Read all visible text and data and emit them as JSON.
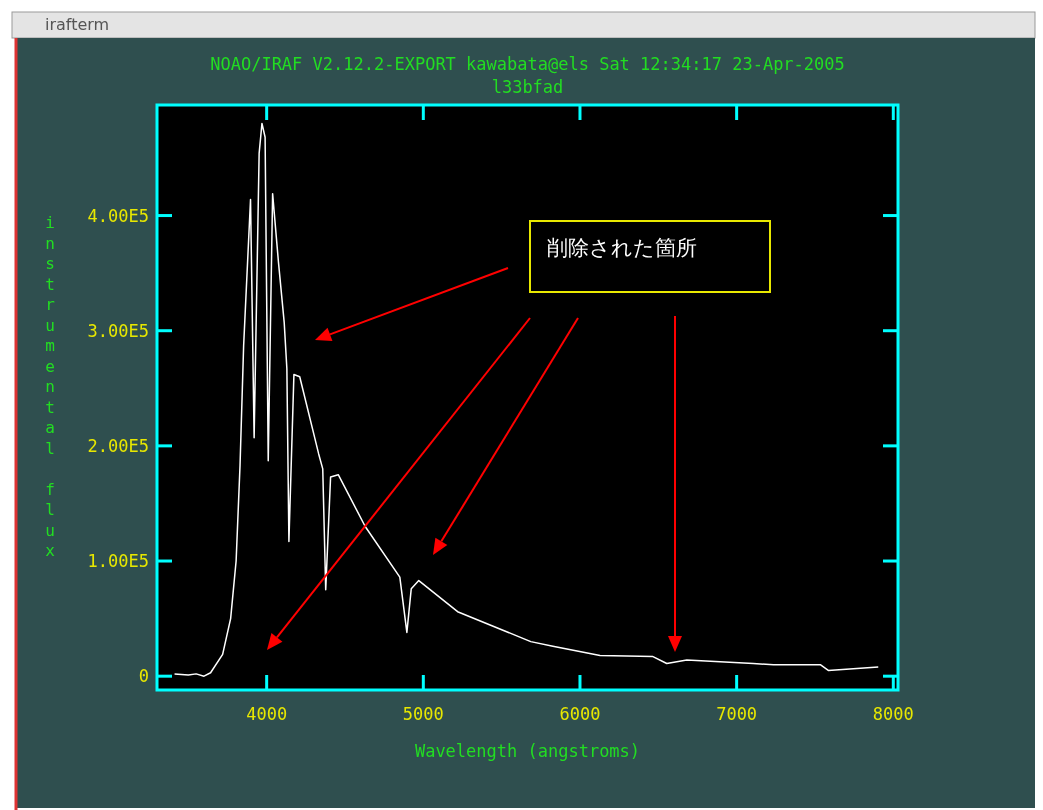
{
  "chart_data": {
    "type": "line",
    "title": "NOAO/IRAF V2.12.2-EXPORT kawabata@els Sat 12:34:17 23-Apr-2005",
    "subtitle": "l33bfad",
    "xlabel": "Wavelength (angstroms)",
    "ylabel": "instrumental flux",
    "annotations": [
      "削除された箇所",
      "irafterm"
    ],
    "x": [
      3412,
      3500,
      3550,
      3600,
      3642,
      3719,
      3770,
      3805,
      3830,
      3853,
      3897,
      3920,
      3952,
      3970,
      3990,
      4010,
      4038,
      4075,
      4112,
      4129,
      4142,
      4174,
      4211,
      4332,
      4358,
      4377,
      4408,
      4457,
      4629,
      4850,
      4895,
      4923,
      4971,
      5219,
      5686,
      5827,
      6128,
      6466,
      6554,
      6682,
      7106,
      7235,
      7534,
      7585,
      7904
    ],
    "series": [
      {
        "color": "#ffffff",
        "values": [
          2000,
          1000,
          2000,
          0,
          3000,
          19000,
          50000,
          100000,
          183000,
          287000,
          414000,
          207000,
          454000,
          480000,
          468000,
          187000,
          419000,
          360000,
          307000,
          267000,
          117000,
          262000,
          260000,
          193000,
          180000,
          75000,
          173000,
          175000,
          130000,
          86000,
          38000,
          76000,
          83000,
          56000,
          30000,
          26000,
          18000,
          17000,
          11000,
          14000,
          11000,
          10000,
          10000,
          5000,
          8000
        ]
      }
    ],
    "xlim": [
      3300,
      8030
    ],
    "ylim": [
      -12000,
      496000
    ],
    "xticks": [
      4000,
      5000,
      6000,
      7000,
      8000
    ],
    "yticks": [
      0,
      {
        "value": 100000,
        "label": "1.00E5"
      },
      {
        "value": 200000,
        "label": "2.00E5"
      },
      {
        "value": 300000,
        "label": "3.00E5"
      },
      {
        "value": 400000,
        "label": "4.00E5"
      }
    ]
  }
}
